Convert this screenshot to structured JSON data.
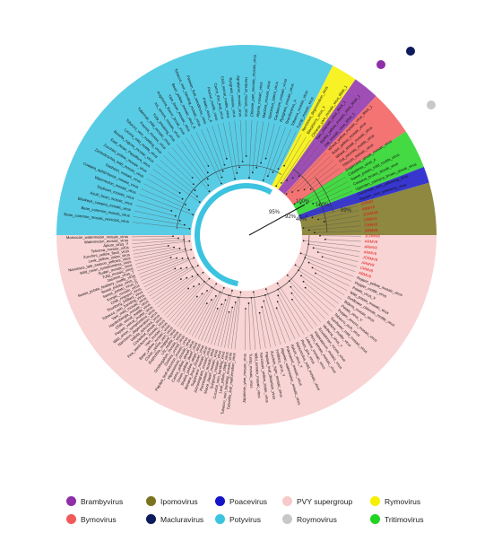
{
  "colors": {
    "brambyvirus": "#8e2fa8",
    "ipomovirus": "#7a7320",
    "poacevirus": "#1414c8",
    "pvy": "#f7c9c9",
    "rymovirus": "#f5f000",
    "bymovirus": "#f25a5a",
    "macluravirus": "#0d1a5c",
    "potyvirus": "#3cc3e0",
    "roymovirus": "#c8c8c8",
    "tritimovirus": "#22d422",
    "red_label": "#e01010"
  },
  "legend": [
    {
      "label": "Brambyvirus",
      "color_key": "brambyvirus"
    },
    {
      "label": "Ipomovirus",
      "color_key": "ipomovirus"
    },
    {
      "label": "Poacevirus",
      "color_key": "poacevirus"
    },
    {
      "label": "PVY supergroup",
      "color_key": "pvy"
    },
    {
      "label": "Rymovirus",
      "color_key": "rymovirus"
    },
    {
      "label": "Bymovirus",
      "color_key": "bymovirus"
    },
    {
      "label": "Macluravirus",
      "color_key": "macluravirus"
    },
    {
      "label": "Potyvirus",
      "color_key": "potyvirus"
    },
    {
      "label": "Roymovirus",
      "color_key": "roymovirus"
    },
    {
      "label": "Tritimovirus",
      "color_key": "tritimovirus"
    }
  ],
  "clade_labels": [
    "100%",
    "92%",
    "95%",
    "99%",
    "100%",
    "40%"
  ],
  "tips_right": [
    "Blackberry_virus_Y",
    "Chinese_yam_mosaic_virus_RNA_1",
    "Yam_chlorotic_virus_RNA_1",
    "Barley_yellow_mosaic_virus_RNA_1",
    "Oat_mosaic_virus_RNA_1",
    "Wheat_yellow_mosaic_virus_RNA_1",
    "Rose_yellow_mosaic_virus",
    "Wheat_streak_mosaic_virus",
    "Oat_necrotic_mottle_virus",
    "Triticum_mosaic_virus",
    "Sugarcane_streak_mosaic_virus",
    "Caladenia_virus_A",
    "Sweet_potato_mild_mottle_virus",
    "Cassava_brown_streak_virus",
    "Ugandan_cassava_brown_streak_virus",
    "Cucumber_vein_yellowing_virus",
    "Squash_vein_yellowing_virus",
    "JCRMV",
    "ARMV8",
    "JCRMV8",
    "CRMV2",
    "CRMV8",
    "ARMV8",
    "JCRMV8",
    "ARMV8",
    "ARMV8",
    "ARMV8",
    "JCRMV8",
    "ARMV8",
    "CRMV8",
    "ARMV8",
    "Pepper_yellow_mosaic_virus",
    "Pepper_mottle_virus",
    "Potato_virus_V",
    "Wild_potato_mosaic_virus",
    "Sunflower_chlorotic_mottle_virus",
    "Bidens_mosaic_virus",
    "Potato_virus_Y",
    "Pepper_severe_mosaic_virus",
    "Tobacco_etch_virus",
    "Sunflower_mild_mosaic_virus",
    "Bidens_mottle_virus",
    "Verbena_virus_Y",
    "Ecuadorian_rocoto_virus",
    "Hippeastrum_mosaic_virus",
    "Peru_tomato_mosaic_virus",
    "Lettuce_mosaic_virus",
    "Plum_pox_virus",
    "Ranunculus_mild_mosaic_virus",
    "Apium_virus_Y",
    "Pokeweed_mosaic_virus",
    "Algerian_watermelon_mosaic_virus",
    "Fritillary_virus_Y",
    "Zucchini_tigre_mosaic_virus",
    "Papaya_leaf_distortion_virus",
    "Narcissus_yellow_stripe_virus",
    "Wild_tomato_mosaic_virus",
    "Turnip_mosaic_virus",
    "Japanese_yam_mosaic_virus"
  ],
  "tips_left": [
    "Tamarillo_leaf_malformation_virus",
    "Tobacco_vein_banding_mosaic_virus",
    "Leek_yellow_stripe_virus",
    "Cucurbit_vein_banding_virus",
    "Sorghum_mosaic_virus",
    "Maize_dwarf_mosaic_virus",
    "Pennisetum_mosaic_virus",
    "Johnsongrass_mosaic_virus",
    "Sugarcane_mosaic_virus",
    "Banana_bract_mosaic_virus",
    "Shallot_yellow_stripe_virus",
    "Onion_yellow_dwarf_virus",
    "Canna_yellow_streak_virus",
    "Hippeastrum_mosaic_virus",
    "Papaya_leaf-distortion_mosaic_virus",
    "Donkey_orchid_virus",
    "Ornithogalum_mosaic_virus",
    "Lily_mottle_virus",
    "Euphorbia_ringspot_virus",
    "Clover_yellow_vein_virus",
    "Bean_yellow_mosaic_virus",
    "Yam_mosaic_virus",
    "Pea_seed-borne_mosaic_virus",
    "Cocksfoot_streak_virus",
    "Vallota_speciosa_virus",
    "Narcissus_degeneration_virus",
    "Wild_onion_symptomless_virus",
    "Pepper_veinal_mottle_virus",
    "Chilli_veinal_mottle_virus",
    "Hardenbergia_mosaic_virus",
    "Yam_mild_mosaic_virus",
    "Tobacco_vein_banding_virus",
    "Thunberg_fritillary_virus",
    "Chilli_ringspot_virus",
    "Konjac_mosaic_virus",
    "Sweet_potato_virus_G",
    "Sweet_potato_virus_C",
    "Sweet_potato_feathery_mottle_virus",
    "Jasmine_virus_T",
    "Tulip_mosaic_virus",
    "Sudan_mosaic_virus",
    "Wild_onion_symptomless_virus",
    "Narcissus_late_season_yellows_virus",
    "Leek_yellow_stripe_virus",
    "Zucchini_yellow_fleck_virus",
    "Telosma_mosaic_virus",
    "Apium_virus_Y",
    "Watermelon_mosaic_virus",
    "Moroccan_watermelon_mosaic_virus"
  ],
  "tips_top": [
    "Bean_common_mosaic_necrosis_virus",
    "Bean_common_mosaic_virus",
    "Blackeye_cowpea_mosaic_virus",
    "Azuki_bean_mosaic_virus",
    "Soybean_mosaic_virus",
    "Watermelon_mosaic_virus",
    "Cowpea_aphid-borne_mosaic_virus",
    "Dasheen_mosaic_virus",
    "Zantedeschia_mild_mosaic_virus",
    "Zucchini_yellow_mosaic_virus",
    "East_Asian_Passiflora_virus",
    "Basella_rugose_mosaic_virus",
    "Lycoris_mild_mottle_virus",
    "Tobacco_vein_mottling_virus",
    "Freesia_mosaic_virus",
    "Tuberose_mild_mosaic_virus",
    "Tulip_breaking_virus",
    "Iris_severe_mosaic_virus",
    "Angelonia_flower_break_virus",
    "Yam_bean_mosaic_virus",
    "Bean_yellow_mosaic_virus_A",
    "Tobacco_vein_banding_mosaic_virus",
    "Passion_fruit_woodiness_virus",
    "Potato_virus_A",
    "Peanut_mottle_virus",
    "Carrot_thin_leaf_virus",
    "Chilli_veinal_mottle_virus",
    "Ryegrass_mosaic_virus",
    "Agropyron_mosaic_virus",
    "Hordeum_mosaic_virus",
    "Chinese_yam_necrotic_mosaic_virus",
    "Alpinia_mosaic_virus",
    "Maclura_mosaic_virus",
    "Narcissus_latent_virus",
    "Cardamom_mosaic_virus",
    "Ryegrass_mosaic_virus",
    "Brambyvirus_A",
    "Tobacco_mosaic_virus",
    "Turnip_mosaic_virus",
    "Narcissus_degeneration_virus"
  ]
}
